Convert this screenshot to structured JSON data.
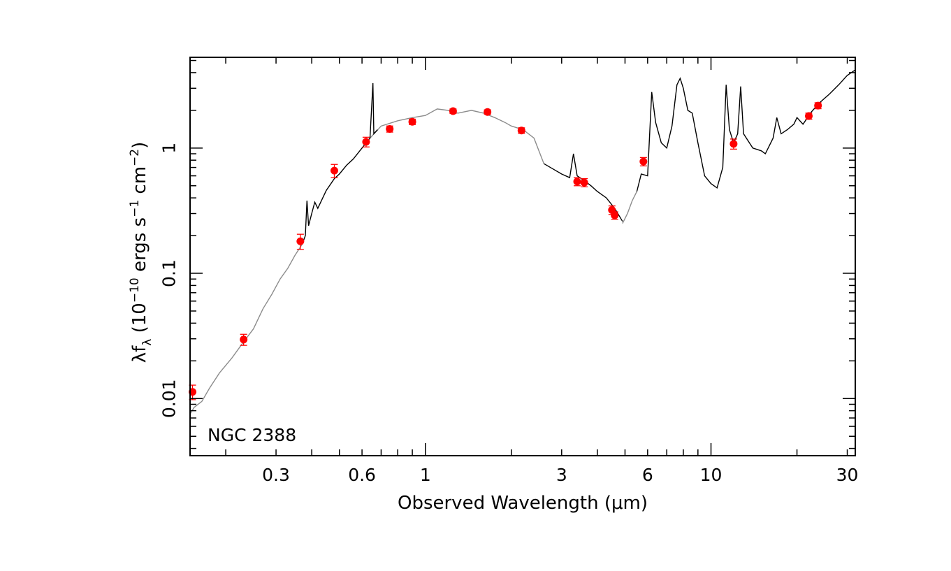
{
  "chart_data": {
    "type": "scatter",
    "xscale": "log",
    "yscale": "log",
    "xlim": [
      0.15,
      32
    ],
    "ylim": [
      0.0035,
      5.3
    ],
    "xlabel": "Observed Wavelength (μm)",
    "ylabel_parts": {
      "a": "λf",
      "sub": "λ",
      "b": " (10",
      "sup1": "−10",
      "c": " ergs s",
      "sup2": "−1",
      "d": " cm",
      "sup3": "−2",
      "e": ")"
    },
    "annotation": "NGC 2388",
    "x_ticks": [
      {
        "value": 0.3,
        "label": "0.3"
      },
      {
        "value": 0.6,
        "label": "0.6"
      },
      {
        "value": 1,
        "label": "1"
      },
      {
        "value": 3,
        "label": "3"
      },
      {
        "value": 6,
        "label": "6"
      },
      {
        "value": 10,
        "label": "10"
      },
      {
        "value": 30,
        "label": "30"
      }
    ],
    "y_ticks": [
      {
        "value": 0.01,
        "label": "0.01"
      },
      {
        "value": 0.1,
        "label": "0.1"
      },
      {
        "value": 1,
        "label": "1"
      }
    ],
    "colors": {
      "points": "#ff0000",
      "model": "#8c8c8c",
      "spectrum": "#000000",
      "axes": "#000000"
    },
    "series": [
      {
        "kind": "photometry",
        "points": [
          {
            "x": 0.153,
            "y": 0.0113,
            "err": 0.0015
          },
          {
            "x": 0.231,
            "y": 0.0296,
            "err": 0.003
          },
          {
            "x": 0.365,
            "y": 0.18,
            "err": 0.025
          },
          {
            "x": 0.48,
            "y": 0.66,
            "err": 0.08
          },
          {
            "x": 0.62,
            "y": 1.12,
            "err": 0.1
          },
          {
            "x": 0.75,
            "y": 1.42,
            "err": 0.08
          },
          {
            "x": 0.9,
            "y": 1.62,
            "err": 0.08
          },
          {
            "x": 1.25,
            "y": 1.97,
            "err": 0.08
          },
          {
            "x": 1.65,
            "y": 1.94,
            "err": 0.08
          },
          {
            "x": 2.17,
            "y": 1.38,
            "err": 0.07
          },
          {
            "x": 3.4,
            "y": 0.54,
            "err": 0.04
          },
          {
            "x": 3.6,
            "y": 0.53,
            "err": 0.04
          },
          {
            "x": 4.5,
            "y": 0.32,
            "err": 0.025
          },
          {
            "x": 4.6,
            "y": 0.29,
            "err": 0.02
          },
          {
            "x": 5.8,
            "y": 0.78,
            "err": 0.06
          },
          {
            "x": 12,
            "y": 1.08,
            "err": 0.1
          },
          {
            "x": 22,
            "y": 1.8,
            "err": 0.1
          },
          {
            "x": 23.7,
            "y": 2.18,
            "err": 0.12
          }
        ]
      },
      {
        "kind": "model",
        "segments": [
          [
            [
              0.15,
              0.0075
            ],
            [
              0.155,
              0.0085
            ],
            [
              0.165,
              0.0095
            ],
            [
              0.175,
              0.012
            ],
            [
              0.19,
              0.016
            ],
            [
              0.21,
              0.021
            ],
            [
              0.23,
              0.028
            ],
            [
              0.25,
              0.036
            ],
            [
              0.27,
              0.052
            ],
            [
              0.29,
              0.068
            ],
            [
              0.31,
              0.09
            ],
            [
              0.33,
              0.11
            ],
            [
              0.35,
              0.14
            ],
            [
              0.37,
              0.17
            ]
          ],
          [
            [
              0.64,
              1.2
            ],
            [
              0.7,
              1.5
            ],
            [
              0.8,
              1.65
            ],
            [
              0.9,
              1.75
            ],
            [
              1.0,
              1.82
            ],
            [
              1.1,
              2.05
            ],
            [
              1.2,
              2.0
            ],
            [
              1.3,
              1.9
            ],
            [
              1.45,
              2.0
            ],
            [
              1.6,
              1.9
            ],
            [
              1.75,
              1.75
            ],
            [
              1.9,
              1.6
            ],
            [
              2.0,
              1.5
            ],
            [
              2.2,
              1.4
            ],
            [
              2.4,
              1.2
            ],
            [
              2.6,
              0.75
            ]
          ],
          [
            [
              4.9,
              0.25
            ],
            [
              5.1,
              0.3
            ],
            [
              5.3,
              0.38
            ],
            [
              5.5,
              0.45
            ]
          ]
        ]
      },
      {
        "kind": "spectrum",
        "segments": [
          [
            [
              0.37,
              0.17
            ],
            [
              0.38,
              0.2
            ],
            [
              0.385,
              0.38
            ],
            [
              0.39,
              0.24
            ],
            [
              0.4,
              0.3
            ],
            [
              0.41,
              0.37
            ],
            [
              0.42,
              0.33
            ],
            [
              0.45,
              0.46
            ],
            [
              0.48,
              0.57
            ],
            [
              0.5,
              0.62
            ],
            [
              0.53,
              0.73
            ],
            [
              0.56,
              0.82
            ],
            [
              0.6,
              1.0
            ],
            [
              0.62,
              1.1
            ],
            [
              0.64,
              1.2
            ],
            [
              0.655,
              3.3
            ],
            [
              0.66,
              1.3
            ],
            [
              0.68,
              1.4
            ]
          ],
          [
            [
              2.6,
              0.75
            ],
            [
              2.8,
              0.68
            ],
            [
              3.0,
              0.62
            ],
            [
              3.2,
              0.58
            ],
            [
              3.3,
              0.9
            ],
            [
              3.4,
              0.6
            ],
            [
              3.6,
              0.55
            ],
            [
              3.8,
              0.5
            ],
            [
              4.0,
              0.45
            ],
            [
              4.3,
              0.4
            ],
            [
              4.6,
              0.33
            ],
            [
              4.9,
              0.26
            ]
          ],
          [
            [
              5.5,
              0.45
            ],
            [
              5.7,
              0.62
            ],
            [
              6.0,
              0.6
            ],
            [
              6.2,
              2.8
            ],
            [
              6.4,
              1.6
            ],
            [
              6.7,
              1.1
            ],
            [
              7.0,
              1.0
            ],
            [
              7.3,
              1.5
            ],
            [
              7.6,
              3.2
            ],
            [
              7.8,
              3.6
            ],
            [
              8.0,
              3.0
            ],
            [
              8.3,
              2.0
            ],
            [
              8.6,
              1.9
            ],
            [
              9.0,
              1.1
            ],
            [
              9.5,
              0.6
            ],
            [
              10.0,
              0.52
            ],
            [
              10.5,
              0.48
            ],
            [
              11.0,
              0.7
            ],
            [
              11.3,
              3.2
            ],
            [
              11.6,
              1.4
            ],
            [
              12.0,
              1.1
            ],
            [
              12.4,
              1.3
            ],
            [
              12.7,
              3.1
            ],
            [
              13.0,
              1.3
            ],
            [
              14.0,
              1.0
            ],
            [
              15.0,
              0.95
            ],
            [
              15.5,
              0.9
            ],
            [
              16.5,
              1.2
            ],
            [
              17.0,
              1.75
            ],
            [
              17.6,
              1.3
            ],
            [
              18.5,
              1.4
            ],
            [
              19.5,
              1.55
            ],
            [
              20.0,
              1.75
            ],
            [
              21.0,
              1.55
            ],
            [
              22.5,
              1.95
            ],
            [
              24.0,
              2.3
            ],
            [
              26.0,
              2.7
            ],
            [
              28.0,
              3.2
            ],
            [
              30.0,
              3.8
            ],
            [
              32.0,
              4.2
            ]
          ]
        ]
      }
    ]
  }
}
